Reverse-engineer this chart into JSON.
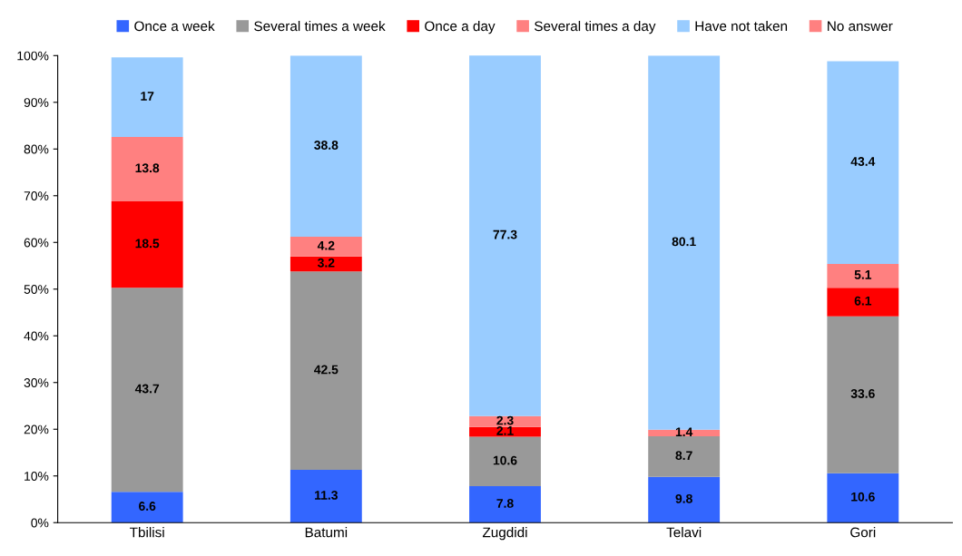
{
  "chart_data": {
    "type": "bar",
    "stacked": true,
    "data_labels": true,
    "grid": false,
    "legend": "top",
    "categories": [
      "Tbilisi",
      "Batumi",
      "Zugdidi",
      "Telavi",
      "Gori"
    ],
    "series": [
      {
        "name": "Once a week",
        "color": "#3366ff",
        "values": [
          6.6,
          11.3,
          7.8,
          9.8,
          10.6
        ]
      },
      {
        "name": "Several times a week",
        "color": "#999999",
        "values": [
          43.7,
          42.5,
          10.6,
          8.7,
          33.6
        ]
      },
      {
        "name": "Once a day",
        "color": "#ff0000",
        "values": [
          18.5,
          3.2,
          2.1,
          null,
          6.1
        ]
      },
      {
        "name": "Several times a day",
        "color": "#ff8080",
        "values": [
          13.8,
          4.2,
          2.3,
          1.4,
          5.1
        ]
      },
      {
        "name": "Have not taken",
        "color": "#99ccff",
        "values": [
          17,
          38.8,
          77.3,
          80.1,
          43.4
        ]
      },
      {
        "name": "No answer",
        "color": "#ff8080",
        "values": [
          null,
          null,
          null,
          null,
          null
        ]
      }
    ],
    "ylim": [
      0,
      100
    ],
    "yticks": [
      {
        "value": 0,
        "label": "0%"
      },
      {
        "value": 10,
        "label": "10%"
      },
      {
        "value": 20,
        "label": "20%"
      },
      {
        "value": 30,
        "label": "30%"
      },
      {
        "value": 40,
        "label": "40%"
      },
      {
        "value": 50,
        "label": "50%"
      },
      {
        "value": 60,
        "label": "60%"
      },
      {
        "value": 70,
        "label": "70%"
      },
      {
        "value": 80,
        "label": "80%"
      },
      {
        "value": 90,
        "label": "90%"
      },
      {
        "value": 100,
        "label": "100%"
      }
    ]
  }
}
